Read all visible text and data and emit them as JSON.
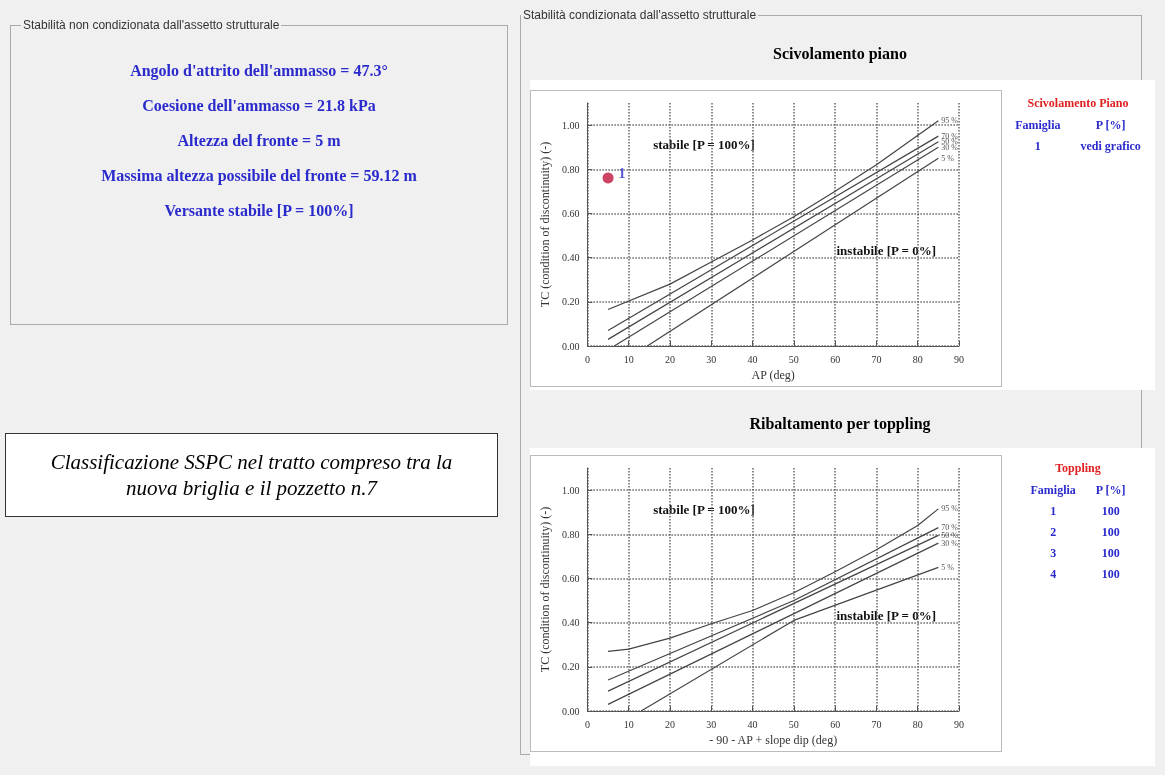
{
  "chart_data": [
    {
      "type": "other",
      "title": "Stabilità non condizionata dall'assetto strutturale",
      "annotations": [
        "Angolo d'attrito dell'ammasso = 47.3°",
        "Coesione dell'ammasso = 21.8 kPa",
        "Altezza del fronte = 5 m",
        "Massima altezza possibile del fronte = 59.12 m",
        "Versante stabile [P = 100%]"
      ]
    },
    {
      "type": "line",
      "subtitle": "Stabilità condizionata dall'assetto strutturale",
      "title": "Scivolamento piano",
      "xlabel": "AP (deg)",
      "ylabel": "TC (condition of discontinuity) (-)",
      "xlim": [
        0,
        90
      ],
      "ylim": [
        0,
        1.1
      ],
      "xticks": [
        0,
        10,
        20,
        30,
        40,
        50,
        60,
        70,
        80,
        90
      ],
      "yticks": [
        {
          "value": 0,
          "label": "0.00"
        },
        {
          "value": 0.2,
          "label": "0.20"
        },
        {
          "value": 0.4,
          "label": "0.40"
        },
        {
          "value": 0.6,
          "label": "0.60"
        },
        {
          "value": 0.8,
          "label": "0.80"
        },
        {
          "value": 1,
          "label": "1.00"
        }
      ],
      "grid": true,
      "legend": false,
      "marker": "none",
      "line_style": "solid",
      "annotations": [
        "stabile [P = 100%]",
        "instabile [P = 0%]"
      ],
      "series": [
        {
          "name": "95 %",
          "color": "#444444",
          "x": [
            5,
            20,
            30,
            40,
            50,
            60,
            70,
            85
          ],
          "values": [
            0.165,
            0.28,
            0.38,
            0.48,
            0.585,
            0.7,
            0.82,
            1.02
          ]
        },
        {
          "name": "70 %",
          "color": "#444444",
          "x": [
            5,
            85
          ],
          "values": [
            0.07,
            0.95
          ]
        },
        {
          "name": "50 %",
          "color": "#444444",
          "x": [
            5,
            85
          ],
          "values": [
            0.03,
            0.925
          ]
        },
        {
          "name": "30 %",
          "color": "#444444",
          "x": [
            6.5,
            85
          ],
          "values": [
            0,
            0.9
          ]
        },
        {
          "name": "5 %",
          "color": "#444444",
          "x": [
            14.5,
            85
          ],
          "values": [
            0,
            0.85
          ]
        },
        {
          "type": "scatter",
          "name": "1",
          "color": "#c0143c",
          "marker": "circle",
          "x": [
            5
          ],
          "values": [
            0.76
          ]
        }
      ]
    },
    {
      "type": "heatmap",
      "title": "Scivolamento Piano",
      "ylabel": "Famiglia",
      "categories": [
        "P [%]"
      ],
      "y_categories": [
        "1"
      ],
      "cells": [
        [
          null
        ]
      ],
      "cell_labels": [
        [
          "vedi grafico"
        ]
      ]
    },
    {
      "type": "line",
      "title": "Ribaltamento per toppling",
      "xlabel": "- 90 - AP + slope dip (deg)",
      "ylabel": "TC (condition of discontinuity) (-)",
      "xlim": [
        0,
        90
      ],
      "ylim": [
        0,
        1.1
      ],
      "xticks": [
        0,
        10,
        20,
        30,
        40,
        50,
        60,
        70,
        80,
        90
      ],
      "yticks": [
        {
          "value": 0,
          "label": "0.00"
        },
        {
          "value": 0.2,
          "label": "0.20"
        },
        {
          "value": 0.4,
          "label": "0.40"
        },
        {
          "value": 0.6,
          "label": "0.60"
        },
        {
          "value": 0.8,
          "label": "0.80"
        },
        {
          "value": 1,
          "label": "1.00"
        }
      ],
      "grid": true,
      "legend": false,
      "marker": "none",
      "line_style": "solid",
      "annotations": [
        "stabile [P = 100%]",
        "instabile [P = 0%]"
      ],
      "series": [
        {
          "name": "95 %",
          "color": "#444444",
          "x": [
            5,
            10,
            20,
            30,
            40,
            50,
            60,
            70,
            80,
            85
          ],
          "values": [
            0.27,
            0.28,
            0.33,
            0.395,
            0.455,
            0.535,
            0.63,
            0.73,
            0.84,
            0.915
          ]
        },
        {
          "name": "70 %",
          "color": "#444444",
          "x": [
            5,
            50,
            85
          ],
          "values": [
            0.14,
            0.5,
            0.83
          ]
        },
        {
          "name": "50 %",
          "color": "#444444",
          "x": [
            5,
            85
          ],
          "values": [
            0.09,
            0.795
          ]
        },
        {
          "name": "30 %",
          "color": "#444444",
          "x": [
            5,
            85
          ],
          "values": [
            0.03,
            0.76
          ]
        },
        {
          "name": "5 %",
          "color": "#444444",
          "x": [
            13,
            50,
            85
          ],
          "values": [
            0,
            0.41,
            0.65
          ]
        }
      ]
    },
    {
      "type": "heatmap",
      "title": "Toppling",
      "ylabel": "Famiglia",
      "categories": [
        "P [%]"
      ],
      "y_categories": [
        "1",
        "2",
        "3",
        "4"
      ],
      "cells": [
        [
          100
        ],
        [
          100
        ],
        [
          100
        ],
        [
          100
        ]
      ],
      "data_labels": true
    },
    {
      "type": "other",
      "annotations": [
        "Classificazione SSPC nel tratto compreso tra la nuova briglia e il pozzetto n.7"
      ]
    }
  ]
}
